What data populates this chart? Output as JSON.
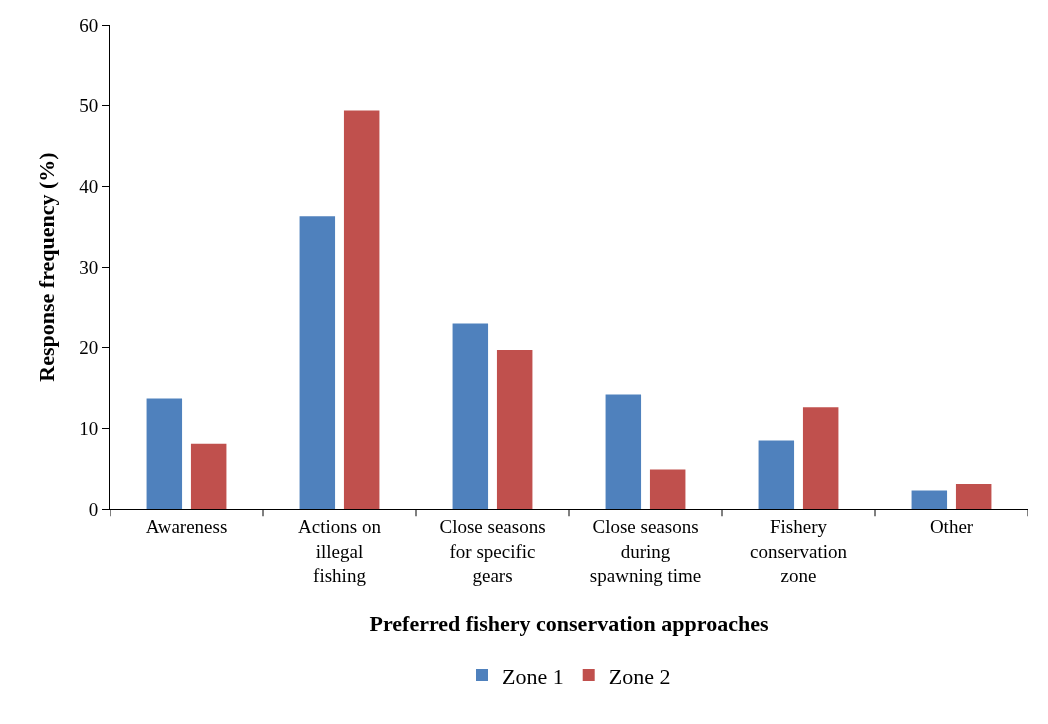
{
  "chart_data": {
    "type": "bar",
    "xlabel": "Preferred fishery conservation approaches",
    "ylabel": "Response frequency (%)",
    "categories": [
      "Awareness",
      "Actions on illegal fishing",
      "Close seasons for specific gears",
      "Close seasons during spawning time",
      "Fishery conservation zone",
      "Other"
    ],
    "series": [
      {
        "name": "Zone 1",
        "color": "#4f81bd",
        "values": [
          13.7,
          36.3,
          23.0,
          14.2,
          8.5,
          2.3
        ]
      },
      {
        "name": "Zone 2",
        "color": "#c0504d",
        "values": [
          8.1,
          49.4,
          19.7,
          4.9,
          12.6,
          3.1
        ]
      }
    ],
    "ylim": [
      0,
      60
    ],
    "yticks": [
      0,
      10,
      20,
      30,
      40,
      50,
      60
    ],
    "grid": false,
    "legend": "bottom"
  }
}
